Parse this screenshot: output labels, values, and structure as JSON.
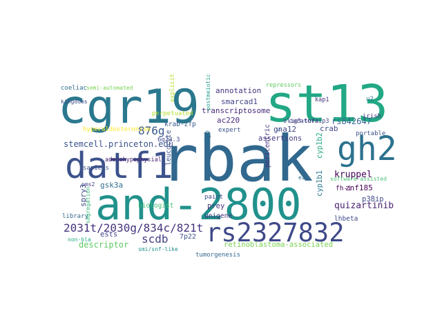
{
  "words": [
    "rbak",
    "cgr19",
    "st13",
    "and-2800",
    "datf1",
    "gh2",
    "rs2327832",
    "2031t/2030g/834c/821t",
    "stemcell.princeton.edu",
    "876g",
    "scdb",
    "descriptor",
    "retinoblastoma-associated",
    "quizartinib",
    "kruppel",
    "rs842647",
    "annotation",
    "smarcad1",
    "transcriptosome",
    "ac220",
    "gna12",
    "assertions",
    "znf185",
    "p38ip",
    "gsk3a",
    "spry3",
    "biologist",
    "krab-zfp",
    "crab",
    "portable",
    "irish",
    "ests",
    "leucocyte",
    "cyp1b1",
    "prey",
    "tumorgenesis",
    "coeliac",
    "semi-automated",
    "expert",
    "curators",
    "hyperaldosteronism",
    "library",
    "paint",
    "unigene",
    "segregation",
    "lhbeta",
    "software-assisted",
    "chgb",
    "olig3-tnfaip3",
    "perpetuated",
    "sapiens",
    "adenohypophysial",
    "7p22",
    "u2",
    "kap1",
    "smi/snf-like",
    "repressors",
    "explicit",
    "pericentric",
    "fh-i",
    "6q23.3",
    "kingdoms",
    "e2f",
    "non-hla",
    "pms2",
    "cyp1b2",
    "postmeiotic",
    "sl"
  ]
}
